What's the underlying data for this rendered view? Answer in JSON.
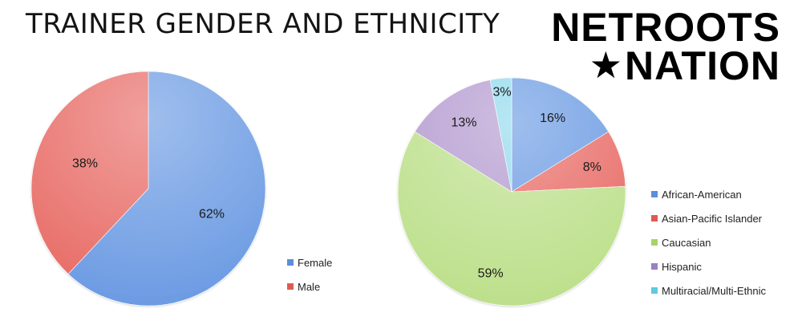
{
  "title": "TRAINER GENDER AND ETHNICITY",
  "logo": {
    "line1": "NETROOTS",
    "star": "★",
    "line2": "NATION"
  },
  "chart_data": [
    {
      "type": "pie",
      "series": [
        {
          "label": "Female",
          "value": 62,
          "display": "62%",
          "color": "#6c9be3",
          "legend_color": "#5b8fd9"
        },
        {
          "label": "Male",
          "value": 38,
          "display": "38%",
          "color": "#e86c66",
          "legend_color": "#e05a52"
        }
      ],
      "start_angle_deg": 0,
      "legend_position": "bottom-right"
    },
    {
      "type": "pie",
      "series": [
        {
          "label": "African-American",
          "value": 16,
          "display": "16%",
          "color": "#6c9be3",
          "legend_color": "#5b8fd9"
        },
        {
          "label": "Asian-Pacific Islander",
          "value": 8,
          "display": "8%",
          "color": "#e86c66",
          "legend_color": "#e05a52"
        },
        {
          "label": "Caucasian",
          "value": 59,
          "display": "59%",
          "color": "#bde08c",
          "legend_color": "#a7d36a"
        },
        {
          "label": "Hispanic",
          "value": 13,
          "display": "13%",
          "color": "#b39ad0",
          "legend_color": "#9b7fc2"
        },
        {
          "label": "Multiracial/Multi-Ethnic",
          "value": 3,
          "display": "3%",
          "color": "#8fd9ec",
          "legend_color": "#5fc9e3"
        }
      ],
      "start_angle_deg": 0,
      "legend_position": "right"
    }
  ]
}
